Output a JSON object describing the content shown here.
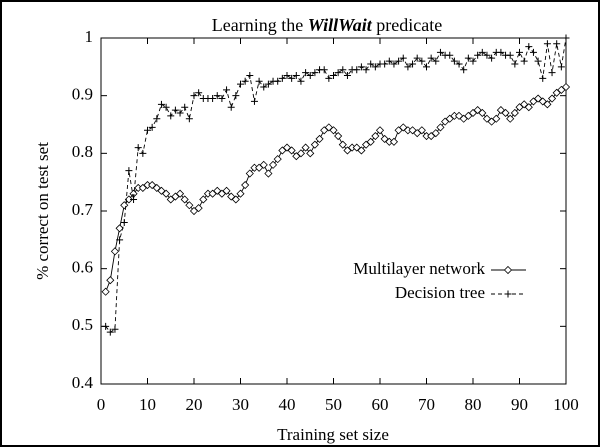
{
  "chart_data": {
    "type": "line",
    "title": [
      "Learning the ",
      "WillWait",
      " predicate"
    ],
    "x_label": "Training set size",
    "y_label": "% correct on test set",
    "x": [
      1,
      2,
      3,
      4,
      5,
      6,
      7,
      8,
      9,
      10,
      11,
      12,
      13,
      14,
      15,
      16,
      17,
      18,
      19,
      20,
      21,
      22,
      23,
      24,
      25,
      26,
      27,
      28,
      29,
      30,
      31,
      32,
      33,
      34,
      35,
      36,
      37,
      38,
      39,
      40,
      41,
      42,
      43,
      44,
      45,
      46,
      47,
      48,
      49,
      50,
      51,
      52,
      53,
      54,
      55,
      56,
      57,
      58,
      59,
      60,
      61,
      62,
      63,
      64,
      65,
      66,
      67,
      68,
      69,
      70,
      71,
      72,
      73,
      74,
      75,
      76,
      77,
      78,
      79,
      80,
      81,
      82,
      83,
      84,
      85,
      86,
      87,
      88,
      89,
      90,
      91,
      92,
      93,
      94,
      95,
      96,
      97,
      98,
      99,
      100
    ],
    "series": [
      {
        "name": "Multilayer network",
        "color": "#000000",
        "dash": "none",
        "marker": "diamond",
        "values": [
          0.56,
          0.58,
          0.63,
          0.67,
          0.71,
          0.72,
          0.73,
          0.74,
          0.74,
          0.745,
          0.745,
          0.74,
          0.735,
          0.73,
          0.72,
          0.725,
          0.73,
          0.72,
          0.71,
          0.7,
          0.705,
          0.72,
          0.73,
          0.73,
          0.735,
          0.73,
          0.735,
          0.725,
          0.72,
          0.73,
          0.745,
          0.765,
          0.775,
          0.775,
          0.78,
          0.765,
          0.78,
          0.79,
          0.805,
          0.81,
          0.805,
          0.795,
          0.8,
          0.81,
          0.8,
          0.815,
          0.825,
          0.84,
          0.845,
          0.84,
          0.83,
          0.815,
          0.805,
          0.81,
          0.81,
          0.805,
          0.815,
          0.82,
          0.83,
          0.84,
          0.825,
          0.82,
          0.82,
          0.84,
          0.845,
          0.84,
          0.84,
          0.835,
          0.84,
          0.83,
          0.83,
          0.835,
          0.845,
          0.855,
          0.86,
          0.865,
          0.865,
          0.86,
          0.865,
          0.87,
          0.875,
          0.87,
          0.86,
          0.855,
          0.86,
          0.875,
          0.87,
          0.86,
          0.87,
          0.88,
          0.885,
          0.88,
          0.89,
          0.895,
          0.89,
          0.885,
          0.895,
          0.905,
          0.91,
          0.915
        ]
      },
      {
        "name": "Decision tree",
        "color": "#000000",
        "dash": "4 3",
        "marker": "plus",
        "values": [
          0.5,
          0.49,
          0.495,
          0.65,
          0.68,
          0.77,
          0.72,
          0.81,
          0.8,
          0.84,
          0.845,
          0.86,
          0.885,
          0.88,
          0.865,
          0.875,
          0.87,
          0.88,
          0.86,
          0.9,
          0.905,
          0.895,
          0.895,
          0.895,
          0.9,
          0.895,
          0.91,
          0.88,
          0.9,
          0.92,
          0.925,
          0.935,
          0.89,
          0.925,
          0.915,
          0.92,
          0.925,
          0.925,
          0.93,
          0.935,
          0.93,
          0.935,
          0.925,
          0.94,
          0.935,
          0.94,
          0.945,
          0.945,
          0.93,
          0.935,
          0.94,
          0.945,
          0.935,
          0.945,
          0.945,
          0.95,
          0.945,
          0.955,
          0.95,
          0.955,
          0.955,
          0.96,
          0.955,
          0.96,
          0.965,
          0.95,
          0.955,
          0.965,
          0.96,
          0.95,
          0.965,
          0.96,
          0.975,
          0.97,
          0.97,
          0.96,
          0.955,
          0.945,
          0.965,
          0.96,
          0.97,
          0.975,
          0.97,
          0.965,
          0.975,
          0.975,
          0.97,
          0.97,
          0.955,
          0.975,
          0.96,
          0.985,
          0.975,
          0.96,
          0.93,
          0.99,
          0.94,
          0.99,
          0.95,
          1.0
        ]
      }
    ],
    "xlim": [
      0,
      100
    ],
    "xticks": [
      0,
      10,
      20,
      30,
      40,
      50,
      60,
      70,
      80,
      90,
      100
    ],
    "ylim": [
      0.4,
      1
    ],
    "yticks": [
      0.4,
      0.5,
      0.6,
      0.7,
      0.8,
      0.9,
      1
    ],
    "legend": "right"
  }
}
